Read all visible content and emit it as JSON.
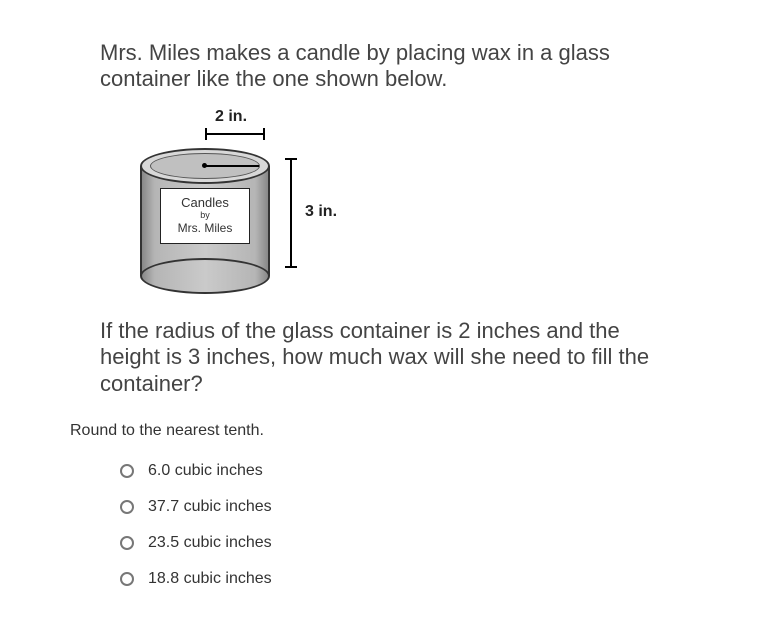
{
  "question": {
    "intro": "Mrs. Miles makes a candle by placing wax in a glass container like the one shown below.",
    "prompt": "If the radius of the glass container is 2 inches and the height is 3 inches, how much wax will she need to fill the container?",
    "instruction": "Round to the nearest tenth."
  },
  "diagram": {
    "radius_label": "2 in.",
    "height_label": "3 in.",
    "candle_label_line1": "Candles",
    "candle_label_line2": "by",
    "candle_label_line3": "Mrs. Miles"
  },
  "options": [
    {
      "label": "6.0 cubic inches"
    },
    {
      "label": "37.7 cubic inches"
    },
    {
      "label": "23.5 cubic inches"
    },
    {
      "label": "18.8 cubic inches"
    }
  ],
  "colors": {
    "text_primary": "#444444",
    "text_secondary": "#333333",
    "background": "#ffffff",
    "cylinder_mid": "#cacaca",
    "cylinder_edge": "#888888",
    "radio_border": "#777777"
  },
  "typography": {
    "question_fontsize": 22,
    "instruction_fontsize": 16,
    "option_fontsize": 16,
    "label_fontsize": 16
  }
}
